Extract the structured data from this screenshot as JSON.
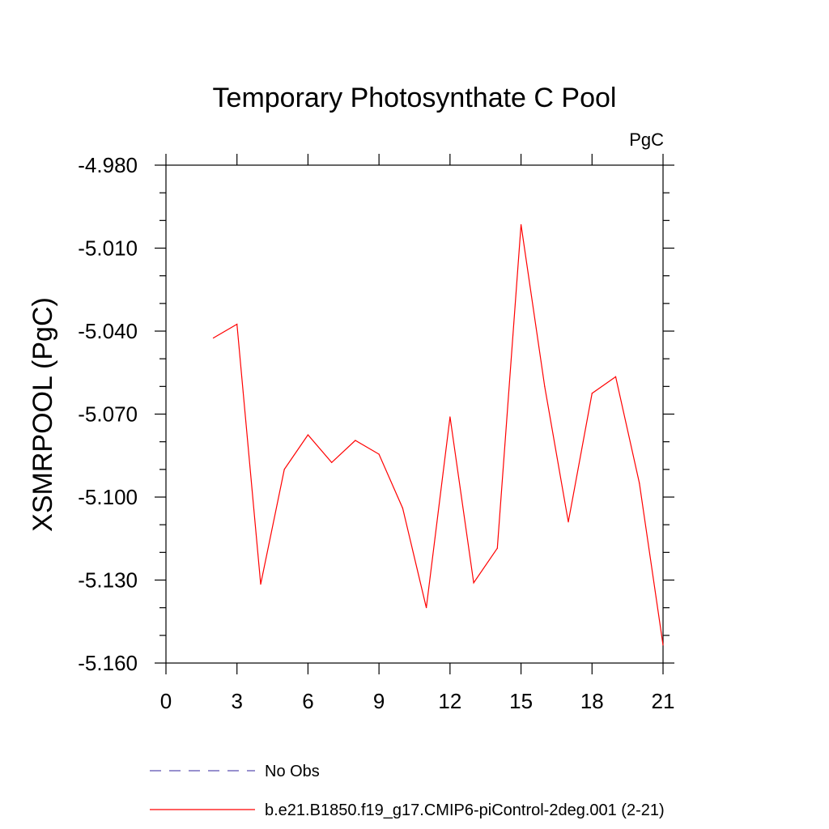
{
  "chart_data": {
    "type": "line",
    "title": "Temporary Photosynthate C Pool",
    "units": "PgC",
    "xlabel": "",
    "ylabel": "XSMRPOOL  (PgC)",
    "xlim": [
      0,
      21
    ],
    "ylim": [
      -5.16,
      -4.98
    ],
    "xticks": [
      "0",
      "3",
      "6",
      "9",
      "12",
      "15",
      "18",
      "21"
    ],
    "yticks": [
      "-4.980",
      "-5.010",
      "-5.040",
      "-5.070",
      "-5.100",
      "-5.130",
      "-5.160"
    ],
    "grid": false,
    "legend_position": "bottom-left, below plot",
    "series": [
      {
        "name": "No Obs",
        "color": "#5a4fb0",
        "style": "dashed",
        "x": [],
        "y": []
      },
      {
        "name": "b.e21.B1850.f19_g17.CMIP6-piControl-2deg.001 (2-21)",
        "color": "#ff0000",
        "style": "solid",
        "x": [
          2,
          3,
          4,
          5,
          6,
          7,
          8,
          9,
          10,
          11,
          12,
          13,
          14,
          15,
          16,
          17,
          18,
          19,
          20,
          21
        ],
        "y": [
          -5.0425,
          -5.0375,
          -5.1315,
          -5.09,
          -5.0775,
          -5.0875,
          -5.0795,
          -5.0845,
          -5.104,
          -5.14,
          -5.071,
          -5.131,
          -5.1185,
          -5.0015,
          -5.06,
          -5.109,
          -5.0625,
          -5.0565,
          -5.095,
          -5.1535
        ]
      }
    ]
  }
}
